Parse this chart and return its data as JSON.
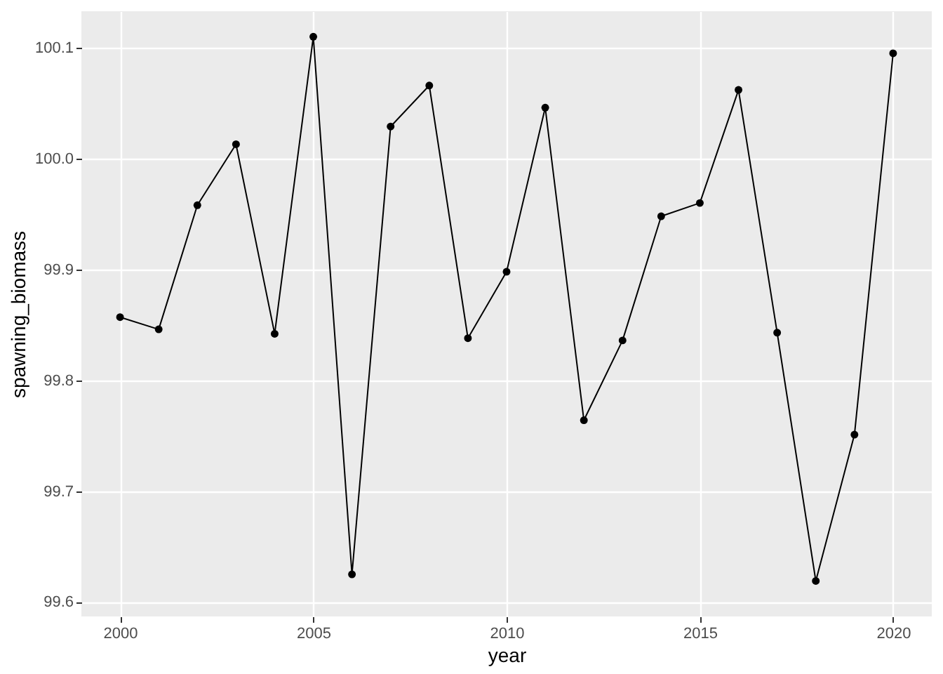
{
  "chart_data": {
    "type": "line",
    "xlabel": "year",
    "ylabel": "spawning_biomass",
    "x": [
      2000,
      2001,
      2002,
      2003,
      2004,
      2005,
      2006,
      2007,
      2008,
      2009,
      2010,
      2011,
      2012,
      2013,
      2014,
      2015,
      2016,
      2017,
      2018,
      2019,
      2020
    ],
    "values": [
      99.857,
      99.846,
      99.958,
      100.013,
      99.842,
      100.11,
      99.625,
      100.029,
      100.066,
      99.838,
      99.898,
      100.046,
      99.764,
      99.836,
      99.948,
      99.96,
      100.062,
      99.843,
      99.619,
      99.751,
      100.095
    ],
    "color": "#000000",
    "marker": "circle",
    "line_style": "solid",
    "grid": true,
    "xlim": [
      1999,
      2021
    ],
    "xticks": [
      2000,
      2005,
      2010,
      2015,
      2020
    ],
    "ylim": [
      99.587,
      100.133
    ],
    "yticks": [
      99.6,
      99.7,
      99.8,
      99.9,
      {
        "value": 100.0,
        "label": "100.0"
      },
      100.1
    ]
  }
}
